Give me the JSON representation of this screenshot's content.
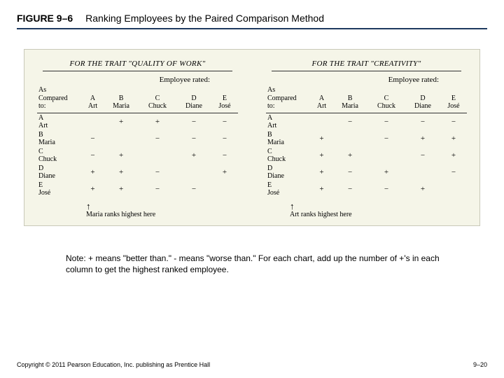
{
  "figure": {
    "number": "FIGURE 9–6",
    "title": "Ranking Employees by the Paired Comparison Method"
  },
  "diagram": {
    "employee_rated_label": "Employee rated:",
    "compared_to_label_line1": "As",
    "compared_to_label_line2": "Compared",
    "compared_to_label_line3": "to:",
    "columns": [
      {
        "letter": "A",
        "name": "Art"
      },
      {
        "letter": "B",
        "name": "Maria"
      },
      {
        "letter": "C",
        "name": "Chuck"
      },
      {
        "letter": "D",
        "name": "Diane"
      },
      {
        "letter": "E",
        "name": "José"
      }
    ],
    "rows": [
      {
        "letter": "A",
        "name": "Art"
      },
      {
        "letter": "B",
        "name": "Maria"
      },
      {
        "letter": "C",
        "name": "Chuck"
      },
      {
        "letter": "D",
        "name": "Diane"
      },
      {
        "letter": "E",
        "name": "José"
      }
    ],
    "panels": [
      {
        "trait": "FOR THE TRAIT \"QUALITY OF WORK\"",
        "grid": [
          [
            "",
            "+",
            "+",
            "−",
            "−"
          ],
          [
            "−",
            "",
            "−",
            "−",
            "−"
          ],
          [
            "−",
            "+",
            "",
            "+",
            "−"
          ],
          [
            "+",
            "+",
            "−",
            "",
            "+"
          ],
          [
            "+",
            "+",
            "−",
            "−",
            ""
          ]
        ],
        "arrow_text": "Maria ranks highest here",
        "arrow_align": "left"
      },
      {
        "trait": "FOR THE TRAIT \"CREATIVITY\"",
        "grid": [
          [
            "",
            "−",
            "−",
            "−",
            "−"
          ],
          [
            "+",
            "",
            "−",
            "+",
            "+"
          ],
          [
            "+",
            "+",
            "",
            "−",
            "+"
          ],
          [
            "+",
            "−",
            "+",
            "",
            "−"
          ],
          [
            "+",
            "−",
            "−",
            "+",
            ""
          ]
        ],
        "arrow_text": "Art ranks highest here",
        "arrow_align": "right"
      }
    ]
  },
  "note": {
    "label": "Note:",
    "text": "+ means \"better than.\" - means \"worse than.\" For each chart, add up the number of +'s in each column to get the highest ranked employee."
  },
  "footer": {
    "copyright": "Copyright © 2011 Pearson Education, Inc. publishing as Prentice Hall",
    "page": "9–20"
  }
}
